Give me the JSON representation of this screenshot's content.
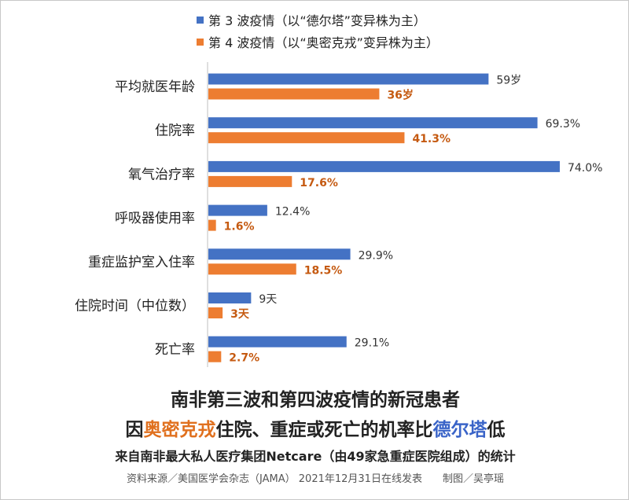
{
  "chart_data": {
    "type": "bar",
    "orientation": "horizontal",
    "categories": [
      "平均就医年龄",
      "住院率",
      "氧气治疗率",
      "呼吸器使用率",
      "重症监护室入住率",
      "住院时间（中位数）",
      "死亡率"
    ],
    "series": [
      {
        "name": "第 3 波疫情（以“德尔塔”变异株为主）",
        "color": "#4472c4",
        "label_color": "#333333",
        "values": [
          59,
          69.3,
          74.0,
          12.4,
          29.9,
          9,
          29.1
        ],
        "labels": [
          "59岁",
          "69.3%",
          "74.0%",
          "12.4%",
          "29.9%",
          "9天",
          "29.1%"
        ]
      },
      {
        "name": "第 4 波疫情（以“奥密克戎”变异株为主）",
        "color": "#ed7d31",
        "label_color": "#c55a11",
        "values": [
          36,
          41.3,
          17.6,
          1.6,
          18.5,
          3,
          2.7
        ],
        "labels": [
          "36岁",
          "41.3%",
          "17.6%",
          "1.6%",
          "18.5%",
          "3天",
          "2.7%"
        ]
      }
    ],
    "xlim": [
      0,
      100
    ],
    "grid": false,
    "legend_position": "top"
  },
  "caption": {
    "line1": "南非第三波和第四波疫情的新冠患者",
    "line2_prefix": "因",
    "line2_orange": "奥密克戎",
    "line2_middle": "住院、重症或死亡的机率比",
    "line2_blue": "德尔塔",
    "line2_suffix": "低",
    "line3": "来自南非最大私人医疗集团Netcare（由49家急重症医院组成）的统计",
    "line4": "资料来源／美国医学会杂志（JAMA） 2021年12月31日在线发表　　制图／吴亭瑶"
  }
}
